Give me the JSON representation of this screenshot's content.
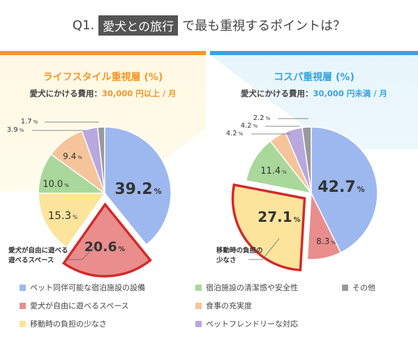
{
  "header": {
    "prefix": "Q1.",
    "highlight": "愛犬との旅行",
    "suffix": "で最も重視するポイントは？"
  },
  "colors": {
    "accent_left": "#f0982a",
    "accent_right": "#36a5dc",
    "highlight_border": "#d32a2a"
  },
  "chart_data": [
    {
      "type": "pie",
      "title": "ライフスタイル重視層 (%)",
      "subtitle_label": "愛犬にかける費用：",
      "subtitle_value": "30,000 円以上 / 月",
      "slices": [
        {
          "category": "ペット同伴可能な宿泊施設の設備",
          "value": 39.2,
          "label": "39.2",
          "color": "#9cb8ee"
        },
        {
          "category": "愛犬が自由に遊べるスペース",
          "value": 20.6,
          "label": "20.6",
          "color": "#e98d8d",
          "highlight": true
        },
        {
          "category": "移動時の負担の少なさ",
          "value": 15.3,
          "label": "15.3",
          "color": "#fde49c"
        },
        {
          "category": "宿泊施設の清潔感や安全性",
          "value": 10.0,
          "label": "10.0",
          "color": "#a9d89a"
        },
        {
          "category": "食事の充実度",
          "value": 9.4,
          "label": "9.4",
          "color": "#f5c49a"
        },
        {
          "category": "ペットフレンドリーな対応",
          "value": 3.9,
          "label": "3.9",
          "color": "#b9a8de"
        },
        {
          "category": "その他",
          "value": 1.7,
          "label": "1.7",
          "color": "#999999"
        }
      ],
      "annotation": [
        "愛犬が自由に遊べる",
        "遊べるスペース"
      ],
      "unit": "%"
    },
    {
      "type": "pie",
      "title": "コスパ重視層 (%)",
      "subtitle_label": "愛犬にかける費用：",
      "subtitle_value": "30,000 円未満 / 月",
      "slices": [
        {
          "category": "ペット同伴可能な宿泊施設の設備",
          "value": 42.7,
          "label": "42.7",
          "color": "#9cb8ee"
        },
        {
          "category": "愛犬が自由に遊べるスペース",
          "value": 8.3,
          "label": "8.3",
          "color": "#e98d8d"
        },
        {
          "category": "移動時の負担の少なさ",
          "value": 27.1,
          "label": "27.1",
          "color": "#fde49c",
          "highlight": true
        },
        {
          "category": "宿泊施設の清潔感や安全性",
          "value": 11.4,
          "label": "11.4",
          "color": "#a9d89a"
        },
        {
          "category": "食事の充実度",
          "value": 4.2,
          "label": "4.2",
          "color": "#f5c49a"
        },
        {
          "category": "ペットフレンドリーな対応",
          "value": 4.2,
          "label": "4.2",
          "color": "#b9a8de"
        },
        {
          "category": "その他",
          "value": 2.2,
          "label": "2.2",
          "color": "#999999"
        }
      ],
      "annotation": [
        "移動時の負担の",
        "少なさ"
      ],
      "unit": "%"
    }
  ],
  "legend": [
    {
      "label": "ペット同伴可能な宿泊施設の設備",
      "color": "#9cb8ee"
    },
    {
      "label": "宿泊施設の清潔感や安全性",
      "color": "#a9d89a"
    },
    {
      "label": "その他",
      "color": "#999999"
    },
    {
      "label": "愛犬が自由に遊べるスペース",
      "color": "#e98d8d"
    },
    {
      "label": "食事の充実度",
      "color": "#f5c49a"
    },
    {
      "label": "移動時の負担の少なさ",
      "color": "#fde49c"
    },
    {
      "label": "ペットフレンドリーな対応",
      "color": "#b9a8de"
    }
  ]
}
